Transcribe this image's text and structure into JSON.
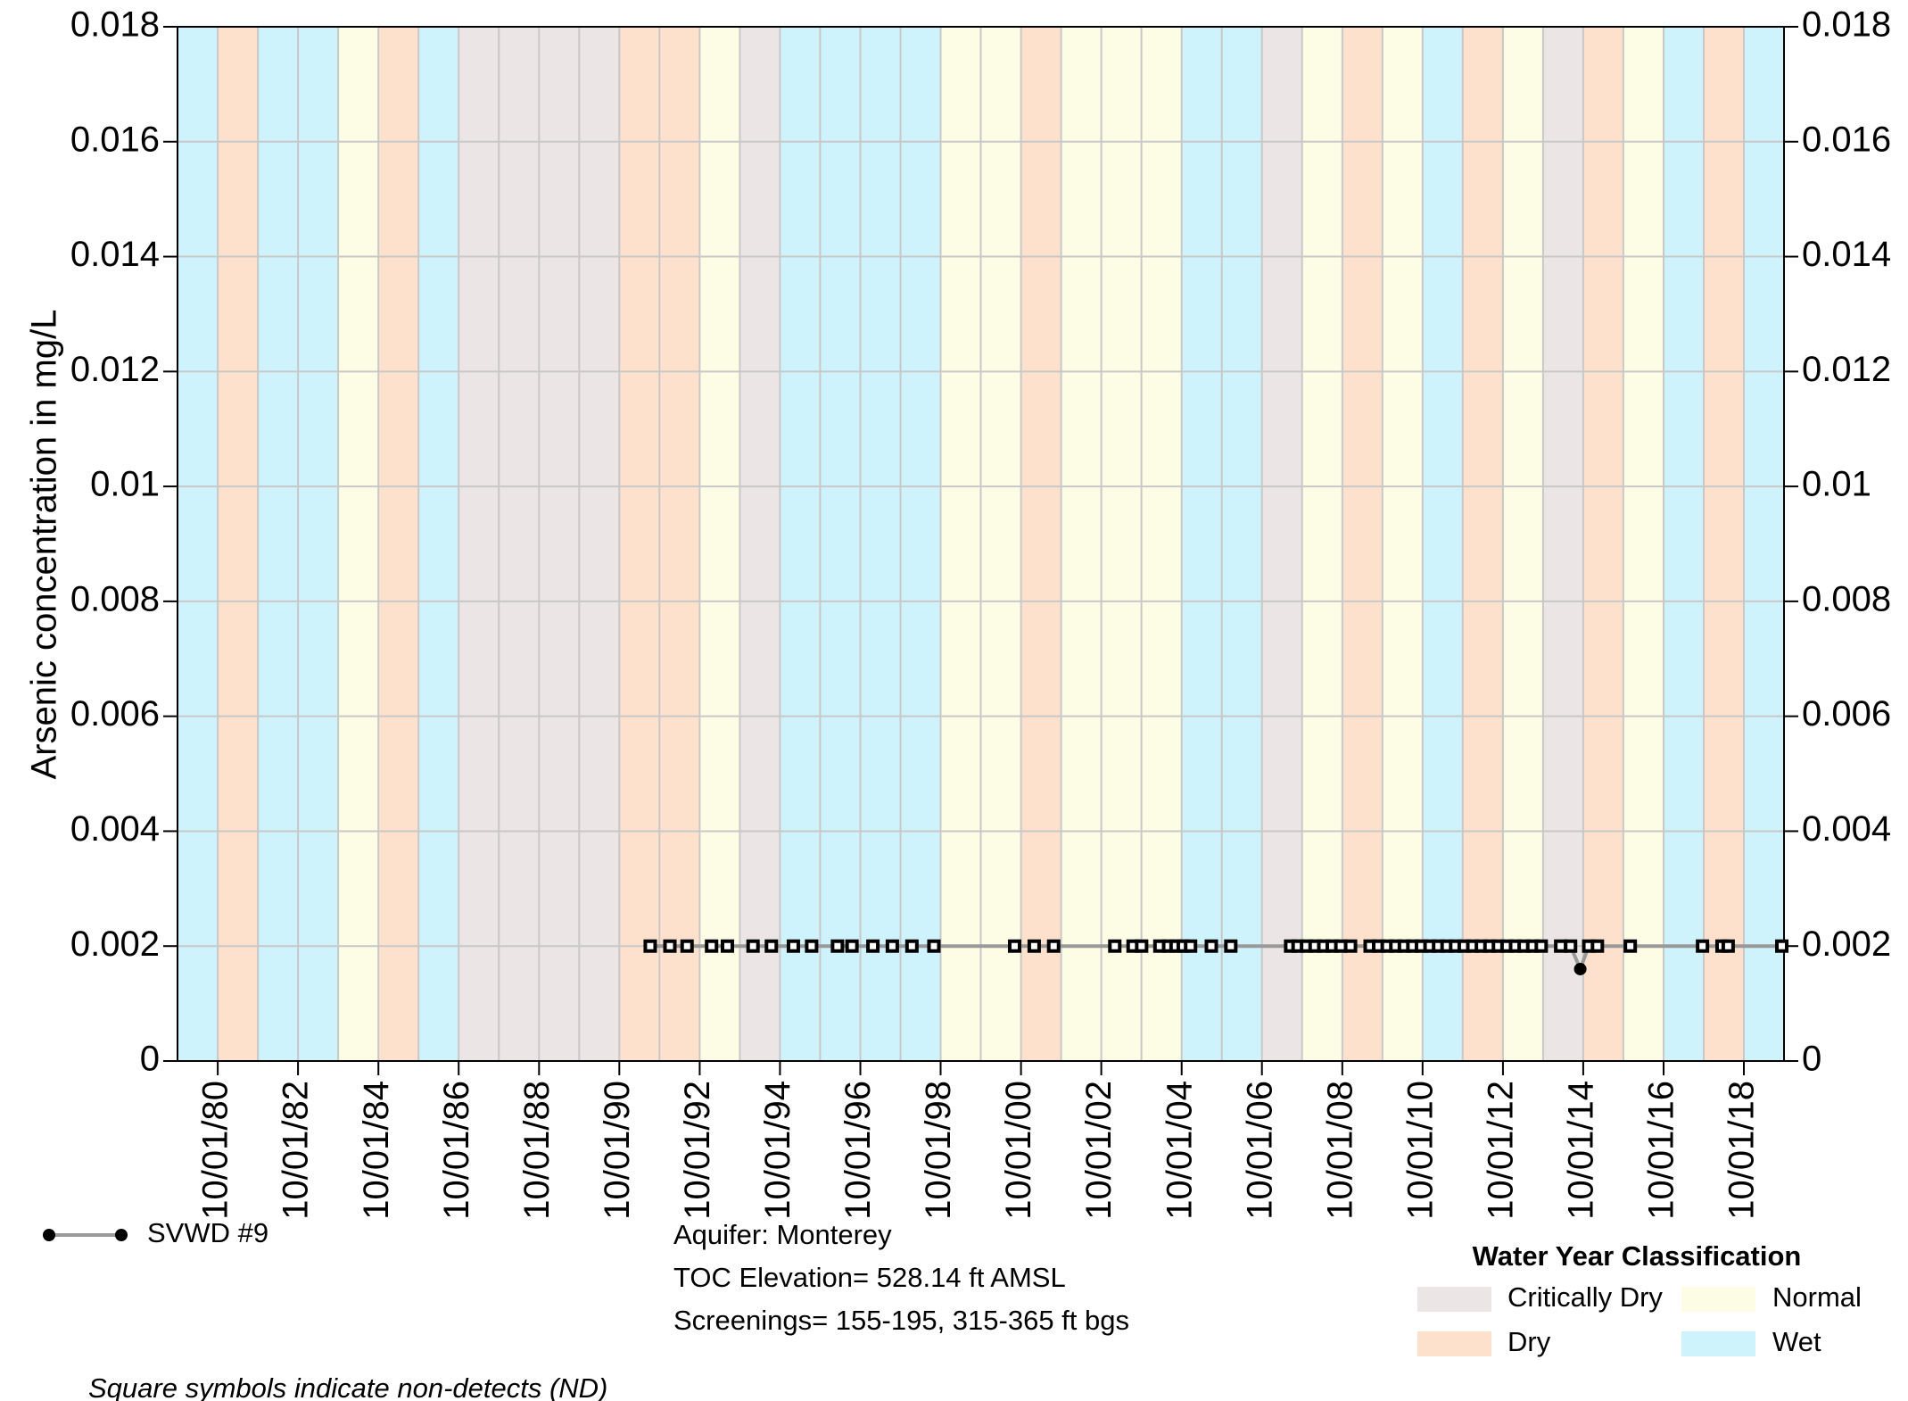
{
  "chart_data": {
    "type": "line",
    "y_label": "Arsenic concentration in mg/L",
    "xlim": [
      "1979-10-01",
      "2019-10-01"
    ],
    "xticks": [
      {
        "value": "1980-10-01",
        "label": "10/01/80"
      },
      {
        "value": "1982-10-01",
        "label": "10/01/82"
      },
      {
        "value": "1984-10-01",
        "label": "10/01/84"
      },
      {
        "value": "1986-10-01",
        "label": "10/01/86"
      },
      {
        "value": "1988-10-01",
        "label": "10/01/88"
      },
      {
        "value": "1990-10-01",
        "label": "10/01/90"
      },
      {
        "value": "1992-10-01",
        "label": "10/01/92"
      },
      {
        "value": "1994-10-01",
        "label": "10/01/94"
      },
      {
        "value": "1996-10-01",
        "label": "10/01/96"
      },
      {
        "value": "1998-10-01",
        "label": "10/01/98"
      },
      {
        "value": "2000-10-01",
        "label": "10/01/00"
      },
      {
        "value": "2002-10-01",
        "label": "10/01/02"
      },
      {
        "value": "2004-10-01",
        "label": "10/01/04"
      },
      {
        "value": "2006-10-01",
        "label": "10/01/06"
      },
      {
        "value": "2008-10-01",
        "label": "10/01/08"
      },
      {
        "value": "2010-10-01",
        "label": "10/01/10"
      },
      {
        "value": "2012-10-01",
        "label": "10/01/12"
      },
      {
        "value": "2014-10-01",
        "label": "10/01/14"
      },
      {
        "value": "2016-10-01",
        "label": "10/01/16"
      },
      {
        "value": "2018-10-01",
        "label": "10/01/18"
      }
    ],
    "ylim": [
      0,
      0.018
    ],
    "yticks": [
      0,
      0.002,
      0.004,
      0.006,
      0.008,
      0.01,
      0.012,
      0.014,
      0.016,
      0.018
    ],
    "grid": true,
    "band_edges": [
      "1979-10-01",
      "1980-10-01",
      "1981-10-01",
      "1982-10-01",
      "1983-10-01",
      "1984-10-01",
      "1985-10-01",
      "1986-10-01",
      "1987-10-01",
      "1988-10-01",
      "1989-10-01",
      "1990-10-01",
      "1991-10-01",
      "1992-10-01",
      "1993-10-01",
      "1994-10-01",
      "1995-10-01",
      "1996-10-01",
      "1997-10-01",
      "1998-10-01",
      "1999-10-01",
      "2000-10-01",
      "2001-10-01",
      "2002-10-01",
      "2003-10-01",
      "2004-10-01",
      "2005-10-01",
      "2006-10-01",
      "2007-10-01",
      "2008-10-01",
      "2009-10-01",
      "2010-10-01",
      "2011-10-01",
      "2012-10-01",
      "2013-10-01",
      "2014-10-01",
      "2015-10-01",
      "2016-10-01",
      "2017-10-01",
      "2018-10-01",
      "2019-10-01"
    ],
    "band_classes": [
      "Wet",
      "Dry",
      "Wet",
      "Wet",
      "Normal",
      "Dry",
      "Wet",
      "Critically Dry",
      "Critically Dry",
      "Critically Dry",
      "Critically Dry",
      "Dry",
      "Dry",
      "Normal",
      "Critically Dry",
      "Wet",
      "Wet",
      "Wet",
      "Wet",
      "Normal",
      "Normal",
      "Dry",
      "Normal",
      "Normal",
      "Normal",
      "Wet",
      "Wet",
      "Critically Dry",
      "Normal",
      "Dry",
      "Normal",
      "Wet",
      "Dry",
      "Normal",
      "Critically Dry",
      "Dry",
      "Normal",
      "Wet",
      "Dry",
      "Wet"
    ],
    "classification_title": "Water Year Classification",
    "classifications": [
      {
        "name": "Critically Dry",
        "color": "#ebe5e5"
      },
      {
        "name": "Normal",
        "color": "#fdfde6"
      },
      {
        "name": "Dry",
        "color": "#fde1cd"
      },
      {
        "name": "Wet",
        "color": "#cef3fc"
      }
    ],
    "x": [
      "1991-07-09",
      "1992-01-04",
      "1992-06-08",
      "1993-01-17",
      "1993-06-10",
      "1994-01-29",
      "1994-07-15",
      "1995-01-31",
      "1995-07-16",
      "1996-03-07",
      "1996-07-17",
      "1997-01-23",
      "1997-07-19",
      "1998-01-13",
      "1998-08-01",
      "2000-08-04",
      "2001-01-29",
      "2001-07-25",
      "2003-02-01",
      "2003-07-17",
      "2003-10-03",
      "2004-03-17",
      "2004-06-04",
      "2004-08-10",
      "2004-10-15",
      "2004-12-21",
      "2005-06-28",
      "2005-12-22",
      "2007-06-19",
      "2007-08-25",
      "2007-11-10",
      "2008-01-27",
      "2008-04-15",
      "2008-07-01",
      "2008-09-17",
      "2008-12-15",
      "2009-06-11",
      "2009-08-27",
      "2009-11-13",
      "2010-01-30",
      "2010-04-18",
      "2010-07-04",
      "2010-09-20",
      "2010-12-07",
      "2011-02-23",
      "2011-05-11",
      "2011-07-28",
      "2011-10-14",
      "2011-12-31",
      "2012-03-18",
      "2012-06-04",
      "2012-08-20",
      "2012-11-06",
      "2013-01-23",
      "2013-04-11",
      "2013-06-28",
      "2013-09-14",
      "2014-03-10",
      "2014-06-08",
      "2014-09-04",
      "2014-11-20",
      "2015-02-07",
      "2015-12-03",
      "2017-09-20",
      "2018-03-16",
      "2018-05-11",
      "2019-09-11"
    ],
    "series": [
      {
        "name": "SVWD #9",
        "color": "#000000",
        "line_color": "#999999",
        "values": [
          0.002,
          0.002,
          0.002,
          0.002,
          0.002,
          0.002,
          0.002,
          0.002,
          0.002,
          0.002,
          0.002,
          0.002,
          0.002,
          0.002,
          0.002,
          0.002,
          0.002,
          0.002,
          0.002,
          0.002,
          0.002,
          0.002,
          0.002,
          0.002,
          0.002,
          0.002,
          0.002,
          0.002,
          0.002,
          0.002,
          0.002,
          0.002,
          0.002,
          0.002,
          0.002,
          0.002,
          0.002,
          0.002,
          0.002,
          0.002,
          0.002,
          0.002,
          0.002,
          0.002,
          0.002,
          0.002,
          0.002,
          0.002,
          0.002,
          0.002,
          0.002,
          0.002,
          0.002,
          0.002,
          0.002,
          0.002,
          0.002,
          0.002,
          0.002,
          0.0016,
          0.002,
          0.002,
          0.002,
          0.002,
          0.002,
          0.002,
          0.002
        ],
        "non_detect": [
          true,
          true,
          true,
          true,
          true,
          true,
          true,
          true,
          true,
          true,
          true,
          true,
          true,
          true,
          true,
          true,
          true,
          true,
          true,
          true,
          true,
          true,
          true,
          true,
          true,
          true,
          true,
          true,
          true,
          true,
          true,
          true,
          true,
          true,
          true,
          true,
          true,
          true,
          true,
          true,
          true,
          true,
          true,
          true,
          true,
          true,
          true,
          true,
          true,
          true,
          true,
          true,
          true,
          true,
          true,
          true,
          true,
          true,
          true,
          false,
          true,
          true,
          true,
          true,
          true,
          true,
          true
        ]
      }
    ],
    "well_info": [
      "Aquifer: Monterey",
      "TOC Elevation= 528.14 ft AMSL",
      "Screenings= 155-195, 315-365 ft bgs"
    ],
    "note": "Square symbols indicate non-detects (ND)"
  }
}
